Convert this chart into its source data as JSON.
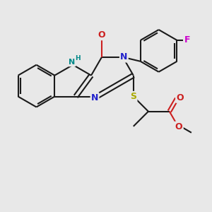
{
  "bg_color": "#e8e8e8",
  "bond_color": "#1a1a1a",
  "N_color": "#2222cc",
  "O_color": "#cc2020",
  "S_color": "#aaaa00",
  "F_color": "#cc00cc",
  "NH_color": "#008888",
  "lw": 1.5,
  "doff": 0.008,
  "figsize": [
    3.0,
    3.0
  ],
  "dpi": 100,
  "xlim": [
    -4.5,
    5.5
  ],
  "ylim": [
    -5.0,
    4.5
  ]
}
